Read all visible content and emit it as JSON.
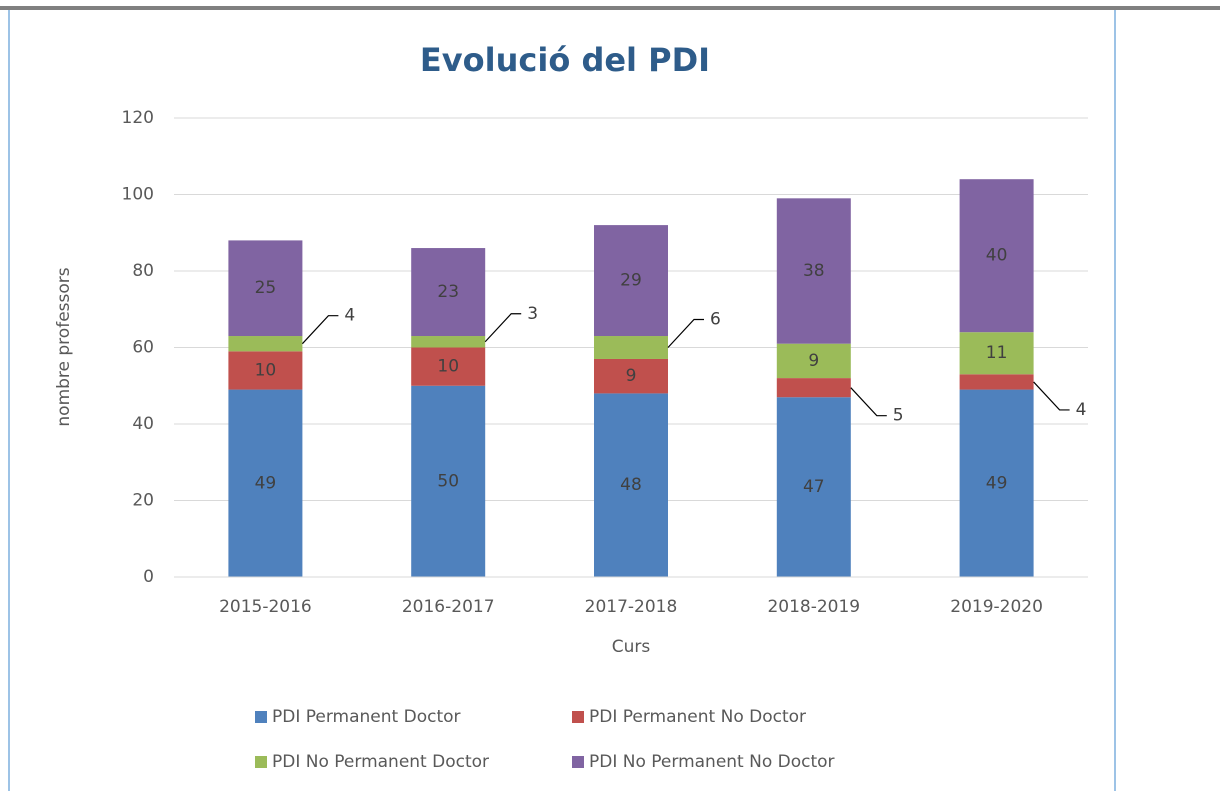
{
  "chart_data": {
    "type": "stacked_bar",
    "title": "Evolució del PDI",
    "x_label": "Curs",
    "y_label": "nombre professors",
    "categories": [
      "2015-2016",
      "2016-2017",
      "2017-2018",
      "2018-2019",
      "2019-2020"
    ],
    "series": [
      {
        "name": "PDI Permanent Doctor",
        "color": "#4f81bd",
        "values": [
          49,
          50,
          48,
          47,
          49
        ]
      },
      {
        "name": "PDI Permanent No Doctor",
        "color": "#c0504d",
        "values": [
          10,
          10,
          9,
          5,
          4
        ]
      },
      {
        "name": "PDI No Permanent Doctor",
        "color": "#9bbb59",
        "values": [
          4,
          3,
          6,
          9,
          11
        ]
      },
      {
        "name": "PDI No Permanent No Doctor",
        "color": "#8064a2",
        "values": [
          25,
          23,
          29,
          38,
          40
        ]
      }
    ],
    "ylim": [
      0,
      120
    ],
    "yticks": [
      0,
      20,
      40,
      60,
      80,
      100,
      120
    ],
    "grid": true
  }
}
